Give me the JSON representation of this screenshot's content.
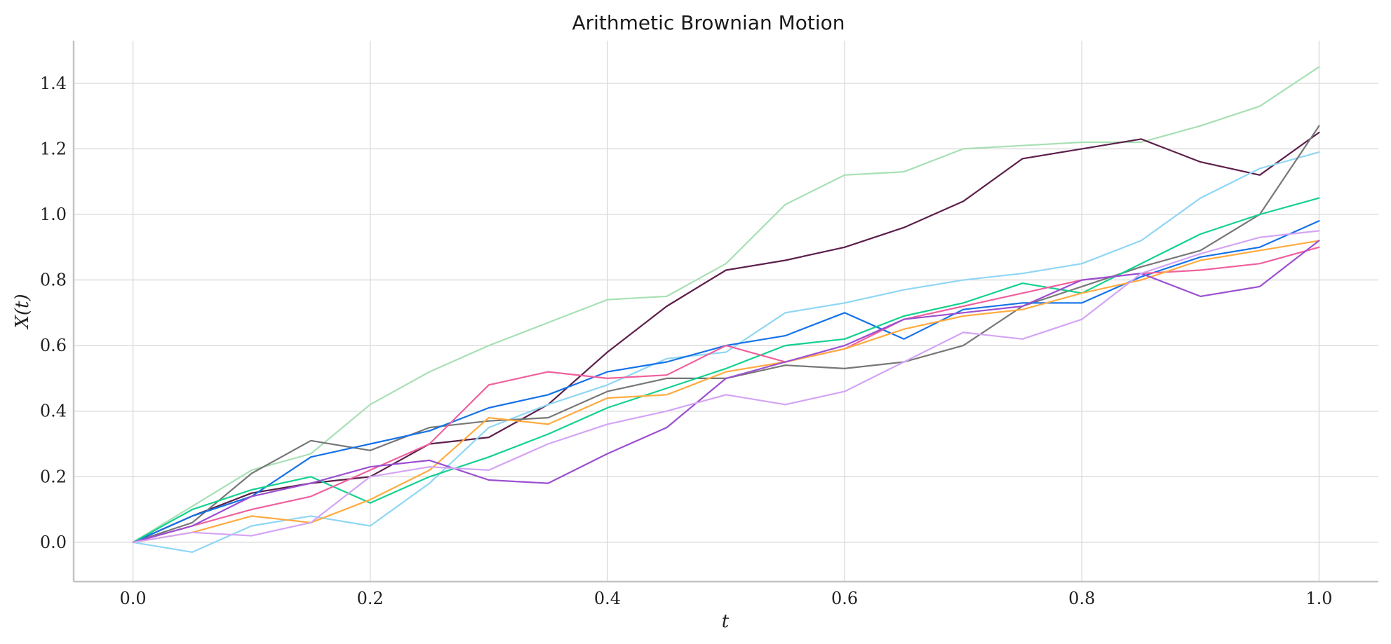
{
  "chart_data": {
    "type": "line",
    "title": "Arithmetic Brownian Motion",
    "xlabel": "t",
    "ylabel": "X(t)",
    "xlim": [
      -0.05,
      1.05
    ],
    "ylim": [
      -0.12,
      1.53
    ],
    "xticks": [
      0.0,
      0.2,
      0.4,
      0.6,
      0.8,
      1.0
    ],
    "xtick_labels": [
      "0.0",
      "0.2",
      "0.4",
      "0.6",
      "0.8",
      "1.0"
    ],
    "yticks": [
      0.0,
      0.2,
      0.4,
      0.6,
      0.8,
      1.0,
      1.2,
      1.4
    ],
    "ytick_labels": [
      "0.0",
      "0.2",
      "0.4",
      "0.6",
      "0.8",
      "1.0",
      "1.2",
      "1.4"
    ],
    "grid": true,
    "legend": "none",
    "x": [
      0.0,
      0.05,
      0.1,
      0.15,
      0.2,
      0.25,
      0.3,
      0.35,
      0.4,
      0.45,
      0.5,
      0.55,
      0.6,
      0.65,
      0.7,
      0.75,
      0.8,
      0.85,
      0.9,
      0.95,
      1.0
    ],
    "series": [
      {
        "color": "#a8e0b4",
        "values": [
          0.0,
          0.11,
          0.22,
          0.27,
          0.42,
          0.52,
          0.6,
          0.67,
          0.74,
          0.75,
          0.85,
          1.03,
          1.12,
          1.13,
          1.2,
          1.21,
          1.22,
          1.22,
          1.27,
          1.33,
          1.45
        ]
      },
      {
        "color": "#5c1f4a",
        "values": [
          0.0,
          0.08,
          0.15,
          0.18,
          0.2,
          0.3,
          0.32,
          0.42,
          0.58,
          0.72,
          0.83,
          0.86,
          0.9,
          0.96,
          1.04,
          1.17,
          1.2,
          1.23,
          1.16,
          1.12,
          1.25
        ]
      },
      {
        "color": "#8fd6f5",
        "values": [
          0.0,
          -0.03,
          0.05,
          0.08,
          0.05,
          0.18,
          0.35,
          0.42,
          0.48,
          0.56,
          0.58,
          0.7,
          0.73,
          0.77,
          0.8,
          0.82,
          0.85,
          0.92,
          1.05,
          1.14,
          1.19
        ]
      },
      {
        "color": "#777777",
        "values": [
          0.0,
          0.06,
          0.21,
          0.31,
          0.28,
          0.35,
          0.37,
          0.38,
          0.46,
          0.5,
          0.5,
          0.54,
          0.53,
          0.55,
          0.6,
          0.72,
          0.78,
          0.84,
          0.89,
          1.0,
          1.27
        ]
      },
      {
        "color": "#1572e8",
        "values": [
          0.0,
          0.08,
          0.14,
          0.26,
          0.3,
          0.34,
          0.41,
          0.45,
          0.52,
          0.55,
          0.6,
          0.63,
          0.7,
          0.62,
          0.71,
          0.73,
          0.73,
          0.81,
          0.87,
          0.9,
          0.98
        ]
      },
      {
        "color": "#14d18e",
        "values": [
          0.0,
          0.1,
          0.16,
          0.2,
          0.12,
          0.2,
          0.26,
          0.33,
          0.41,
          0.47,
          0.53,
          0.6,
          0.62,
          0.69,
          0.73,
          0.79,
          0.76,
          0.85,
          0.94,
          1.0,
          1.05
        ]
      },
      {
        "color": "#f0609e",
        "values": [
          0.0,
          0.05,
          0.1,
          0.14,
          0.22,
          0.3,
          0.48,
          0.52,
          0.5,
          0.51,
          0.6,
          0.55,
          0.59,
          0.68,
          0.72,
          0.76,
          0.8,
          0.82,
          0.83,
          0.85,
          0.9
        ]
      },
      {
        "color": "#ffab40",
        "values": [
          0.0,
          0.03,
          0.08,
          0.06,
          0.13,
          0.22,
          0.38,
          0.36,
          0.44,
          0.45,
          0.52,
          0.55,
          0.59,
          0.65,
          0.69,
          0.71,
          0.76,
          0.8,
          0.86,
          0.89,
          0.92
        ]
      },
      {
        "color": "#9b4fd1",
        "values": [
          0.0,
          0.05,
          0.14,
          0.18,
          0.23,
          0.25,
          0.19,
          0.18,
          0.27,
          0.35,
          0.5,
          0.55,
          0.6,
          0.68,
          0.7,
          0.72,
          0.8,
          0.82,
          0.75,
          0.78,
          0.92
        ]
      },
      {
        "color": "#d4a4f5",
        "values": [
          0.0,
          0.03,
          0.02,
          0.06,
          0.2,
          0.23,
          0.22,
          0.3,
          0.36,
          0.4,
          0.45,
          0.42,
          0.46,
          0.55,
          0.64,
          0.62,
          0.68,
          0.82,
          0.88,
          0.93,
          0.95
        ]
      }
    ]
  }
}
